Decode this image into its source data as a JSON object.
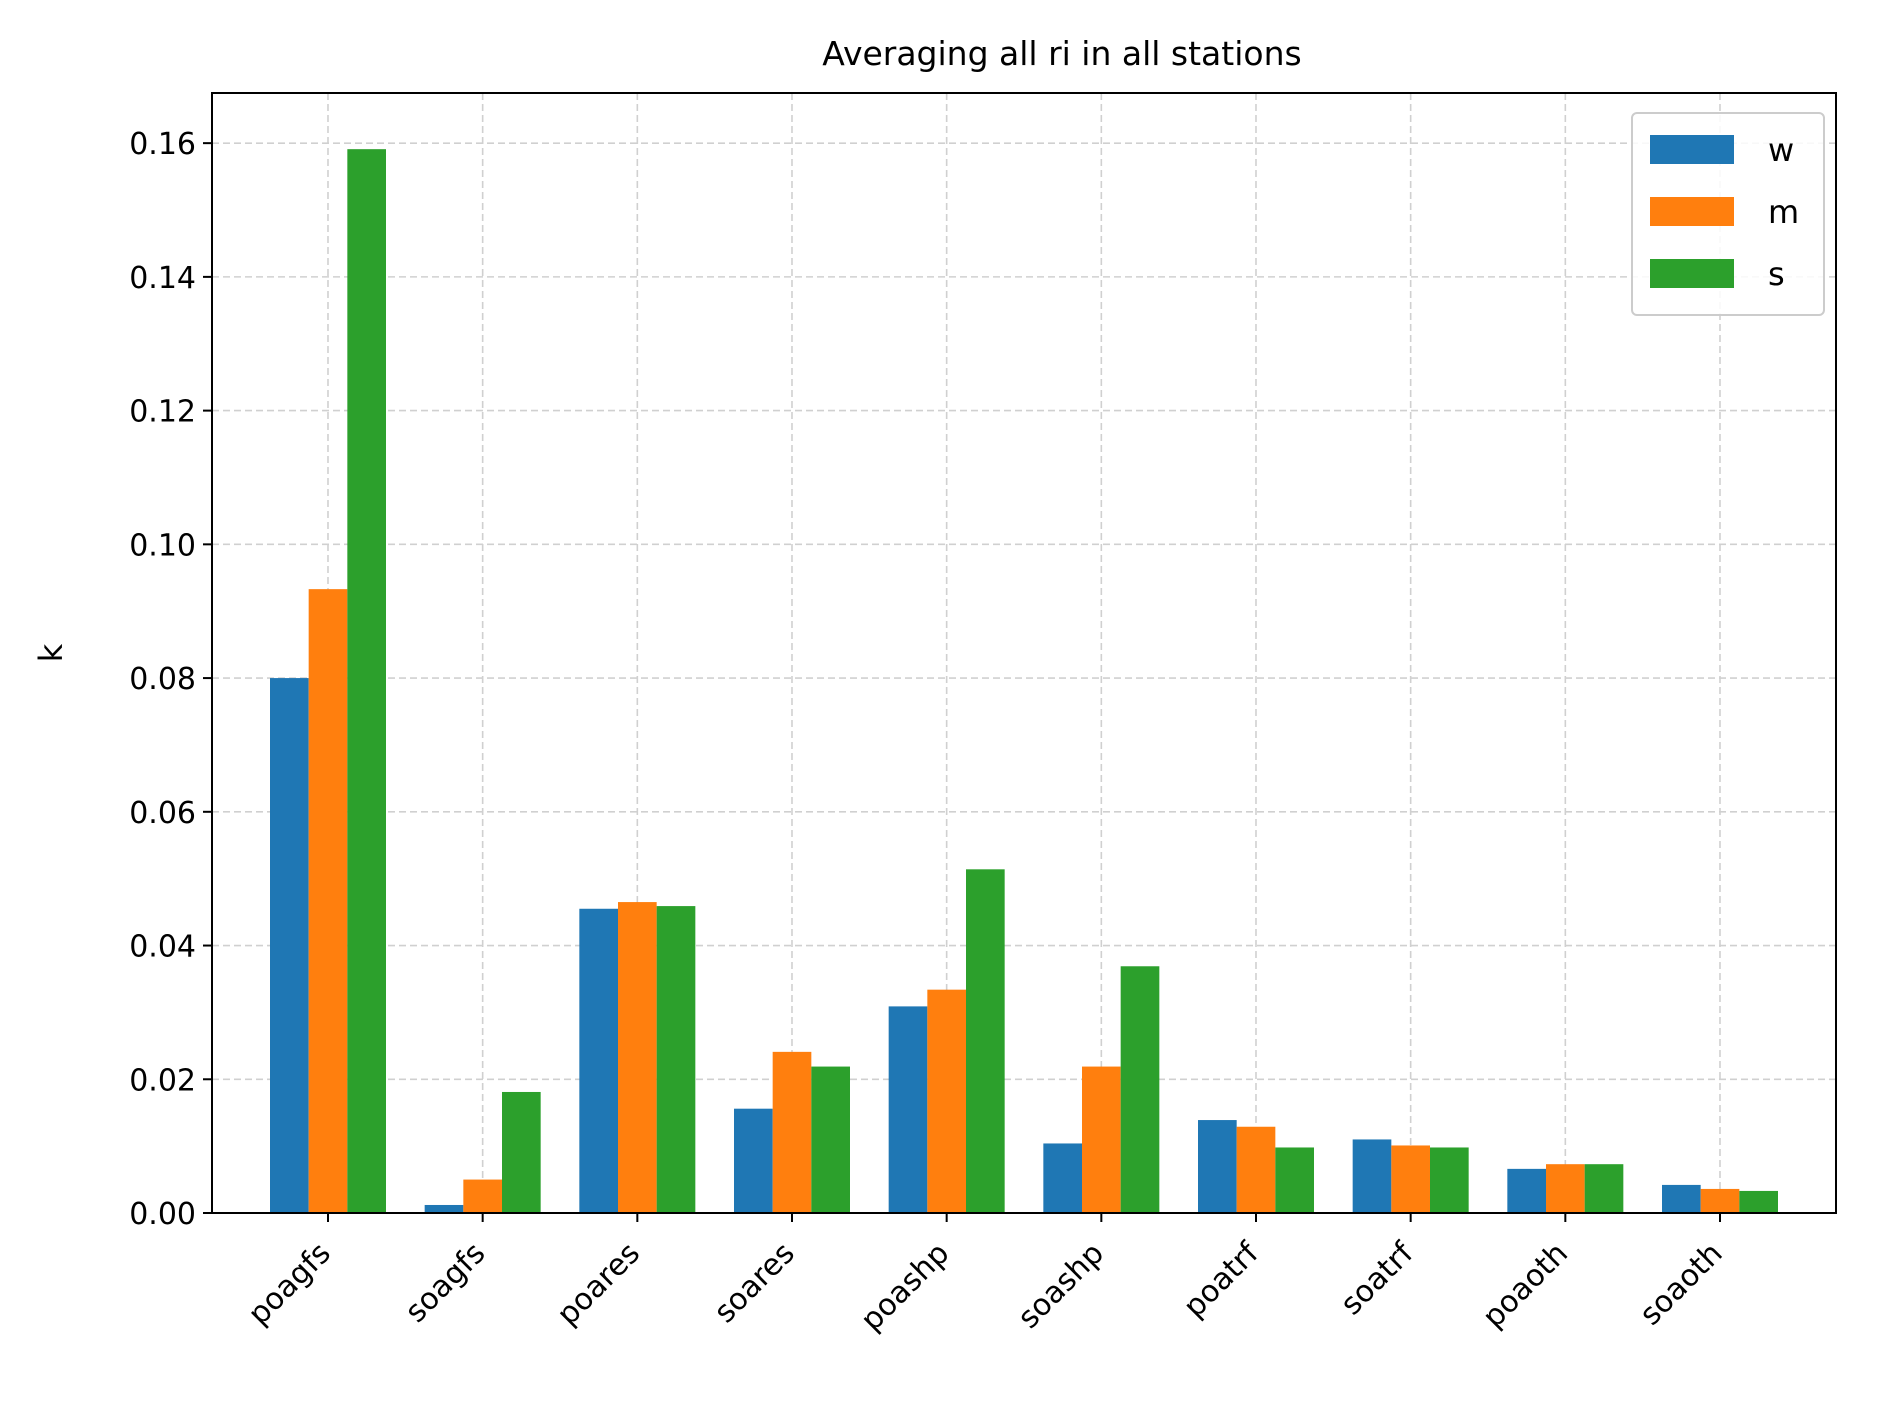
{
  "chart_data": {
    "type": "bar",
    "title": "Averaging all ri in all stations",
    "xlabel": "",
    "ylabel": "k",
    "categories": [
      "poagfs",
      "soagfs",
      "poares",
      "soares",
      "poashp",
      "soashp",
      "poatrf",
      "soatrf",
      "poaoth",
      "soaoth"
    ],
    "series": [
      {
        "name": "w",
        "color": "#1f77b4",
        "values": [
          0.08,
          0.0012,
          0.0455,
          0.0156,
          0.0309,
          0.0104,
          0.0139,
          0.011,
          0.0066,
          0.0042
        ]
      },
      {
        "name": "m",
        "color": "#ff7f0e",
        "values": [
          0.0933,
          0.005,
          0.0465,
          0.0241,
          0.0334,
          0.0219,
          0.0129,
          0.0101,
          0.0073,
          0.0036
        ]
      },
      {
        "name": "s",
        "color": "#2ca02c",
        "values": [
          0.1591,
          0.0181,
          0.0459,
          0.0219,
          0.0514,
          0.0369,
          0.0098,
          0.0098,
          0.0073,
          0.0033
        ]
      }
    ],
    "ylim": [
      0,
      0.1675
    ],
    "yticks": [
      "0.00",
      "0.02",
      "0.04",
      "0.06",
      "0.08",
      "0.10",
      "0.12",
      "0.14",
      "0.16"
    ],
    "grid": true,
    "legend_position": "top-right"
  }
}
